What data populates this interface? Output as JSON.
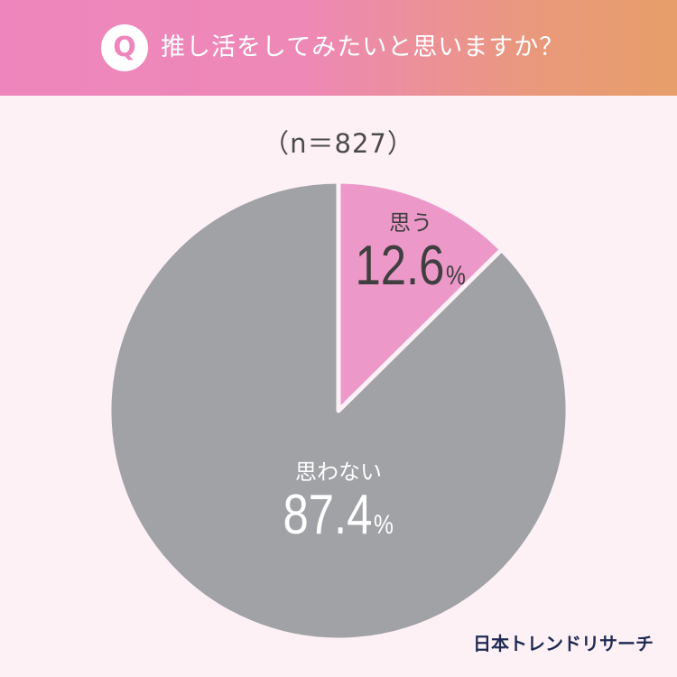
{
  "header": {
    "badge": "Q",
    "question": "推し活をしてみたいと思いますか？"
  },
  "sample_label": "（n＝827）",
  "chart_data": {
    "type": "pie",
    "categories": [
      "思う",
      "思わない"
    ],
    "values": [
      12.6,
      87.4
    ],
    "value_labels": [
      "12.6",
      "87.4"
    ],
    "unit": "%",
    "colors": [
      "#ec98c8",
      "#a1a2a5"
    ],
    "separator_color": "#fdf1f6",
    "start_angle": "12 o'clock, clockwise"
  },
  "source": "日本トレンドリサーチ"
}
